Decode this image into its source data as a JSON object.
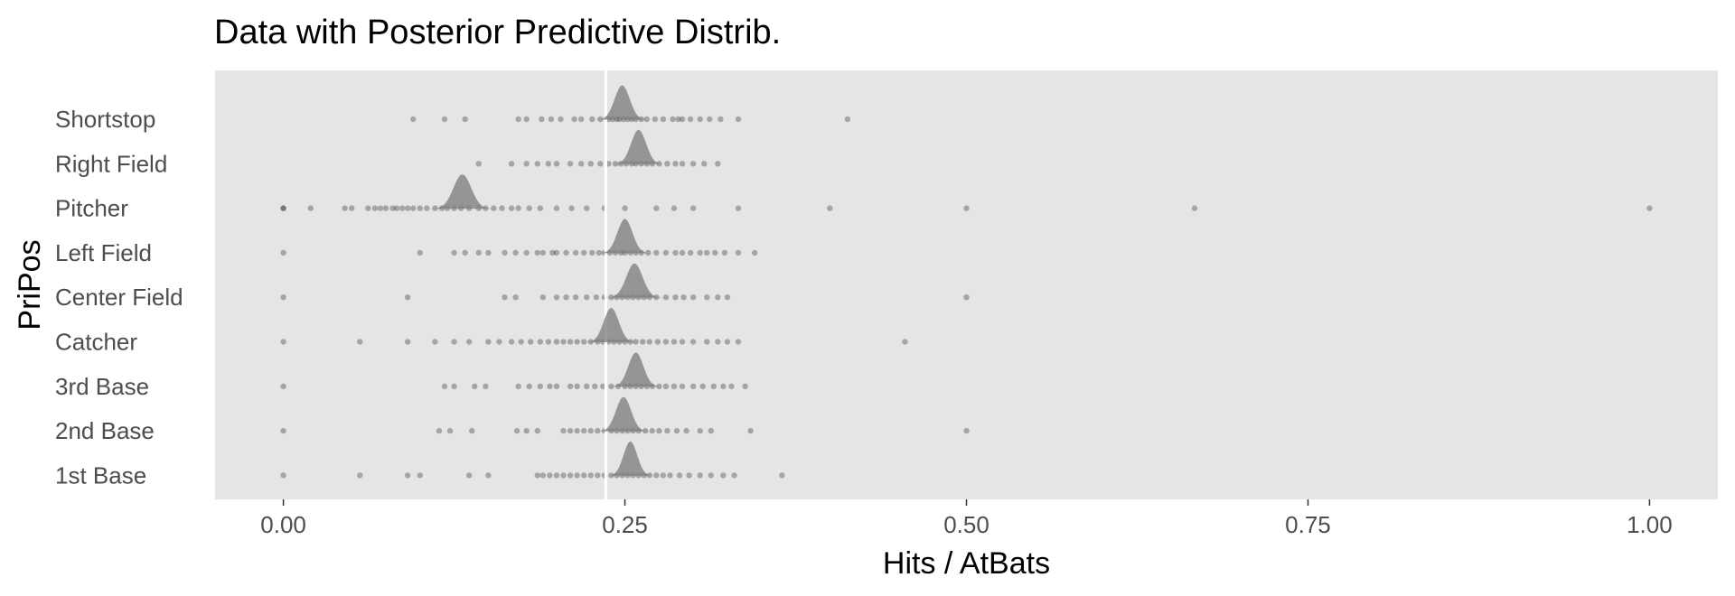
{
  "chart_data": {
    "type": "scatter",
    "title": "Data with Posterior Predictive Distrib.",
    "xlabel": "Hits / AtBats",
    "ylabel": "PriPos",
    "xlim": [
      -0.05,
      1.05
    ],
    "x_ticks": [
      0,
      0.25,
      0.5,
      0.75,
      1
    ],
    "x_tick_labels": [
      "0.00",
      "0.25",
      "0.50",
      "0.75",
      "1.00"
    ],
    "reference_line": 0.236,
    "grid": false,
    "panel_background": "#e5e5e5",
    "point_color": "#000000",
    "density_color": "#7f7f7f",
    "categories": [
      "Shortstop",
      "Right Field",
      "Pitcher",
      "Left Field",
      "Center Field",
      "Catcher",
      "3rd Base",
      "2nd Base",
      "1st Base"
    ],
    "series": [
      {
        "category": "Shortstop",
        "posterior_mean": 0.248,
        "posterior_sd": 0.0055,
        "points": [
          0.095,
          0.118,
          0.133,
          0.172,
          0.178,
          0.189,
          0.196,
          0.203,
          0.213,
          0.218,
          0.226,
          0.232,
          0.238,
          0.241,
          0.244,
          0.246,
          0.249,
          0.252,
          0.255,
          0.258,
          0.262,
          0.266,
          0.272,
          0.278,
          0.285,
          0.289,
          0.292,
          0.298,
          0.305,
          0.312,
          0.32,
          0.333,
          0.413
        ]
      },
      {
        "category": "Right Field",
        "posterior_mean": 0.26,
        "posterior_sd": 0.0055,
        "points": [
          0.143,
          0.167,
          0.178,
          0.186,
          0.194,
          0.2,
          0.21,
          0.218,
          0.225,
          0.232,
          0.238,
          0.243,
          0.247,
          0.251,
          0.255,
          0.258,
          0.262,
          0.266,
          0.27,
          0.275,
          0.281,
          0.287,
          0.292,
          0.3,
          0.308,
          0.318
        ]
      },
      {
        "category": "Pitcher",
        "posterior_mean": 0.131,
        "posterior_sd": 0.0065,
        "points": [
          0,
          0,
          0.02,
          0.045,
          0.05,
          0.062,
          0.067,
          0.071,
          0.075,
          0.08,
          0.083,
          0.087,
          0.091,
          0.095,
          0.1,
          0.105,
          0.111,
          0.116,
          0.12,
          0.125,
          0.13,
          0.136,
          0.143,
          0.148,
          0.154,
          0.16,
          0.167,
          0.172,
          0.18,
          0.188,
          0.2,
          0.211,
          0.222,
          0.235,
          0.25,
          0.273,
          0.286,
          0.3,
          0.333,
          0.4,
          0.5,
          0.667,
          1.0
        ]
      },
      {
        "category": "Left Field",
        "posterior_mean": 0.25,
        "posterior_sd": 0.0055,
        "points": [
          0,
          0.1,
          0.125,
          0.133,
          0.143,
          0.15,
          0.162,
          0.17,
          0.178,
          0.186,
          0.19,
          0.197,
          0.2,
          0.207,
          0.214,
          0.22,
          0.226,
          0.231,
          0.235,
          0.239,
          0.243,
          0.247,
          0.25,
          0.254,
          0.258,
          0.262,
          0.267,
          0.273,
          0.28,
          0.287,
          0.292,
          0.298,
          0.305,
          0.31,
          0.316,
          0.323,
          0.333,
          0.345
        ]
      },
      {
        "category": "Center Field",
        "posterior_mean": 0.257,
        "posterior_sd": 0.006,
        "points": [
          0,
          0.091,
          0.162,
          0.17,
          0.19,
          0.2,
          0.207,
          0.214,
          0.222,
          0.229,
          0.235,
          0.24,
          0.244,
          0.248,
          0.252,
          0.256,
          0.26,
          0.264,
          0.268,
          0.273,
          0.28,
          0.287,
          0.293,
          0.3,
          0.31,
          0.318,
          0.325,
          0.5
        ]
      },
      {
        "category": "Catcher",
        "posterior_mean": 0.24,
        "posterior_sd": 0.0055,
        "points": [
          0,
          0.056,
          0.091,
          0.111,
          0.125,
          0.136,
          0.15,
          0.158,
          0.167,
          0.174,
          0.181,
          0.188,
          0.194,
          0.2,
          0.205,
          0.21,
          0.215,
          0.22,
          0.225,
          0.23,
          0.234,
          0.238,
          0.242,
          0.246,
          0.25,
          0.254,
          0.258,
          0.263,
          0.268,
          0.274,
          0.28,
          0.286,
          0.292,
          0.3,
          0.31,
          0.318,
          0.325,
          0.333,
          0.455
        ]
      },
      {
        "category": "3rd Base",
        "posterior_mean": 0.258,
        "posterior_sd": 0.0055,
        "points": [
          0,
          0.118,
          0.125,
          0.14,
          0.148,
          0.172,
          0.18,
          0.188,
          0.195,
          0.2,
          0.21,
          0.215,
          0.222,
          0.228,
          0.234,
          0.24,
          0.245,
          0.25,
          0.254,
          0.258,
          0.262,
          0.266,
          0.27,
          0.275,
          0.28,
          0.286,
          0.292,
          0.3,
          0.307,
          0.315,
          0.322,
          0.328,
          0.338
        ]
      },
      {
        "category": "2nd Base",
        "posterior_mean": 0.249,
        "posterior_sd": 0.0055,
        "points": [
          0,
          0.114,
          0.122,
          0.138,
          0.171,
          0.178,
          0.186,
          0.205,
          0.21,
          0.215,
          0.22,
          0.225,
          0.23,
          0.235,
          0.24,
          0.244,
          0.248,
          0.252,
          0.256,
          0.26,
          0.265,
          0.27,
          0.275,
          0.281,
          0.288,
          0.295,
          0.305,
          0.313,
          0.342,
          0.5
        ]
      },
      {
        "category": "1st Base",
        "posterior_mean": 0.254,
        "posterior_sd": 0.005,
        "points": [
          0,
          0.056,
          0.091,
          0.1,
          0.136,
          0.15,
          0.186,
          0.19,
          0.195,
          0.2,
          0.205,
          0.21,
          0.215,
          0.22,
          0.225,
          0.23,
          0.235,
          0.24,
          0.244,
          0.248,
          0.252,
          0.256,
          0.26,
          0.264,
          0.268,
          0.273,
          0.278,
          0.283,
          0.29,
          0.297,
          0.305,
          0.313,
          0.322,
          0.33,
          0.365
        ]
      }
    ]
  }
}
